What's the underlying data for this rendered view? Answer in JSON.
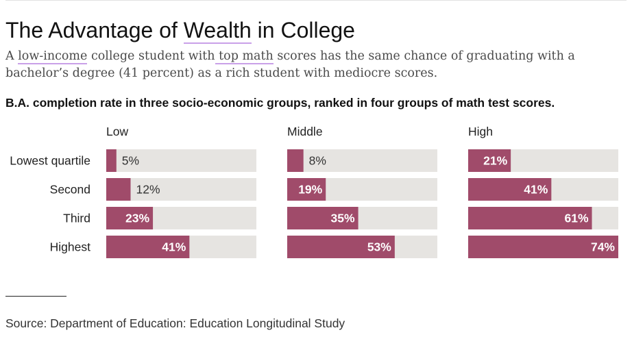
{
  "headline": {
    "title_pre": "The Advantage of ",
    "title_hl": "Wealth",
    "title_post": " in College"
  },
  "subtitle": {
    "p1": "A ",
    "hl1": "low-income",
    "p2": " college student with",
    "hl2": " top math",
    "p3": " scores has the same chance of graduating with a bachelor’s degree (41 percent) as a rich student with mediocre scores."
  },
  "source": "Source: Department of Education: Education Longitudinal Study",
  "colors": {
    "bar": "#a04b6a",
    "track": "#e6e4e1",
    "label_inside": "#ffffff",
    "label_outside": "#333333"
  },
  "chart_data": {
    "type": "bar",
    "orientation": "horizontal",
    "title": "B.A. completion rate in three socio-economic groups, ranked in four groups of math test scores.",
    "categories": [
      "Lowest quartile",
      "Second",
      "Third",
      "Highest"
    ],
    "series": [
      {
        "name": "Low",
        "values": [
          5,
          12,
          23,
          41
        ],
        "labels": [
          "5%",
          "12%",
          "23%",
          "41%"
        ]
      },
      {
        "name": "Middle",
        "values": [
          8,
          19,
          35,
          53
        ],
        "labels": [
          "8%",
          "19%",
          "35%",
          "53%"
        ]
      },
      {
        "name": "High",
        "values": [
          21,
          41,
          61,
          74
        ],
        "labels": [
          "21%",
          "41%",
          "61%",
          "74%"
        ]
      }
    ],
    "xlim": [
      0,
      74
    ],
    "unit": "%"
  }
}
